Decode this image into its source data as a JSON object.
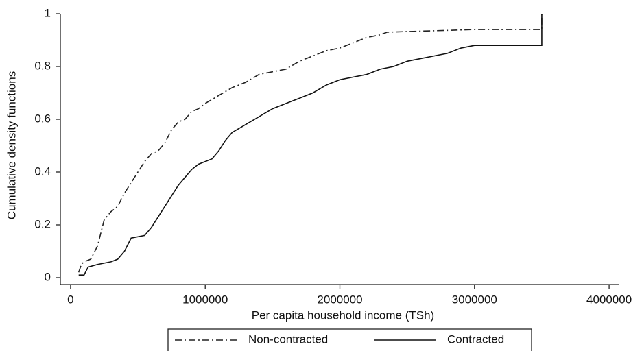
{
  "chart_data": {
    "type": "line",
    "xlabel": "Per capita household income (TSh)",
    "ylabel": "Cumulative density functions",
    "xlim": [
      -76000,
      4076000
    ],
    "ylim": [
      -0.026,
      1
    ],
    "xticks": [
      0,
      1000000,
      2000000,
      3000000,
      4000000
    ],
    "yticks": [
      0,
      0.2,
      0.4,
      0.6,
      0.8,
      1
    ],
    "legend": "bottom",
    "series": [
      {
        "name": "Non-contracted",
        "color": "#222222",
        "line_style": "dash-dot",
        "x": [
          60000,
          80000,
          100000,
          150000,
          200000,
          250000,
          300000,
          350000,
          400000,
          450000,
          500000,
          550000,
          600000,
          650000,
          700000,
          750000,
          800000,
          850000,
          900000,
          950000,
          1000000,
          1100000,
          1200000,
          1300000,
          1400000,
          1500000,
          1600000,
          1700000,
          1800000,
          1900000,
          2000000,
          2100000,
          2200000,
          2300000,
          2350000,
          3000000,
          3500000,
          3500000
        ],
        "values": [
          0.02,
          0.05,
          0.06,
          0.07,
          0.12,
          0.22,
          0.25,
          0.27,
          0.32,
          0.36,
          0.4,
          0.44,
          0.47,
          0.48,
          0.51,
          0.56,
          0.59,
          0.6,
          0.63,
          0.64,
          0.66,
          0.69,
          0.72,
          0.74,
          0.77,
          0.78,
          0.79,
          0.82,
          0.84,
          0.86,
          0.87,
          0.89,
          0.91,
          0.92,
          0.93,
          0.94,
          0.94,
          1.0
        ]
      },
      {
        "name": "Contracted",
        "color": "#111111",
        "line_style": "solid",
        "x": [
          60000,
          100000,
          130000,
          200000,
          300000,
          350000,
          400000,
          450000,
          550000,
          600000,
          650000,
          700000,
          750000,
          800000,
          850000,
          900000,
          950000,
          1000000,
          1050000,
          1100000,
          1150000,
          1200000,
          1300000,
          1400000,
          1500000,
          1600000,
          1700000,
          1800000,
          1900000,
          2000000,
          2100000,
          2200000,
          2300000,
          2400000,
          2500000,
          2600000,
          2700000,
          2800000,
          2900000,
          3000000,
          3500000,
          3500000
        ],
        "values": [
          0.01,
          0.01,
          0.04,
          0.05,
          0.06,
          0.07,
          0.1,
          0.15,
          0.16,
          0.19,
          0.23,
          0.27,
          0.31,
          0.35,
          0.38,
          0.41,
          0.43,
          0.44,
          0.45,
          0.48,
          0.52,
          0.55,
          0.58,
          0.61,
          0.64,
          0.66,
          0.68,
          0.7,
          0.73,
          0.75,
          0.76,
          0.77,
          0.79,
          0.8,
          0.82,
          0.83,
          0.84,
          0.85,
          0.87,
          0.88,
          0.88,
          1.0
        ]
      }
    ]
  }
}
